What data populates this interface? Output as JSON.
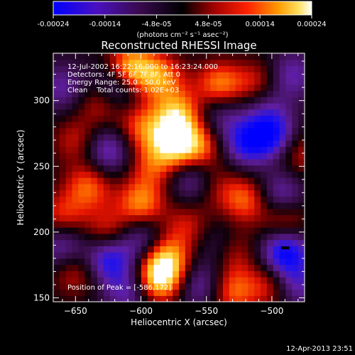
{
  "colorbar": {
    "tick_labels": [
      "-0.00024",
      "-0.00014",
      "-4.8e-05",
      "4.8e-05",
      "0.00014",
      "0.00024"
    ],
    "units": "(photons cm⁻² s⁻¹ asec⁻²)"
  },
  "title": "Reconstructed RHESSI Image",
  "annotations": {
    "time_range": "12-Jul-2002 16:22:16.000 to 16:23:24.000",
    "detectors": "Detectors: 4F 5F 6F 7F 8F, Att 0",
    "energy_range": "Energy Range: 25.0 - 50.0 keV",
    "clean": "Clean    Total counts: 1.02E+03",
    "peak": "Position of Peak = [-586,172]"
  },
  "footer": {
    "timestamp": "12-Apr-2013 23:51"
  },
  "chart_data": {
    "type": "heatmap",
    "title": "Reconstructed RHESSI Image",
    "xlabel": "Heliocentric X (arcsec)",
    "ylabel": "Heliocentric Y (arcsec)",
    "xlim": [
      -667,
      -475
    ],
    "ylim": [
      147,
      336
    ],
    "xticks": [
      -650,
      -600,
      -550,
      -500
    ],
    "yticks": [
      150,
      200,
      250,
      300
    ],
    "peak": [
      -586,
      172
    ],
    "colorbar_range": [
      -0.00024,
      0.00024
    ],
    "colormap": [
      "#0000ff",
      "#5a1aa0",
      "#2a0a38",
      "#000000",
      "#8a0000",
      "#ff1a00",
      "#ff8c00",
      "#ffd23c",
      "#ffffff"
    ],
    "blobs": [
      {
        "x": -608,
        "y": 325,
        "v": 0.9
      },
      {
        "x": -585,
        "y": 318,
        "v": 0.65
      },
      {
        "x": -540,
        "y": 312,
        "v": 0.7
      },
      {
        "x": -630,
        "y": 300,
        "v": 0.55
      },
      {
        "x": -575,
        "y": 268,
        "v": 0.9
      },
      {
        "x": -572,
        "y": 290,
        "v": 0.75
      },
      {
        "x": -555,
        "y": 265,
        "v": 0.6
      },
      {
        "x": -600,
        "y": 280,
        "v": 0.55
      },
      {
        "x": -592,
        "y": 250,
        "v": 0.45
      },
      {
        "x": -650,
        "y": 270,
        "v": 0.4
      },
      {
        "x": -640,
        "y": 235,
        "v": 0.6
      },
      {
        "x": -600,
        "y": 222,
        "v": 0.7
      },
      {
        "x": -520,
        "y": 225,
        "v": 0.6
      },
      {
        "x": -545,
        "y": 235,
        "v": 0.35
      },
      {
        "x": -660,
        "y": 212,
        "v": 0.5
      },
      {
        "x": -625,
        "y": 200,
        "v": 0.5
      },
      {
        "x": -580,
        "y": 180,
        "v": 0.7
      },
      {
        "x": -586,
        "y": 165,
        "v": 0.95
      },
      {
        "x": -565,
        "y": 205,
        "v": 0.4
      },
      {
        "x": -530,
        "y": 185,
        "v": 0.45
      },
      {
        "x": -650,
        "y": 170,
        "v": 0.45
      },
      {
        "x": -510,
        "y": 312,
        "v": 0.55
      },
      {
        "x": -490,
        "y": 210,
        "v": 0.55
      },
      {
        "x": -478,
        "y": 260,
        "v": 0.4
      },
      {
        "x": -530,
        "y": 155,
        "v": 0.6
      },
      {
        "x": -500,
        "y": 160,
        "v": 0.5
      },
      {
        "x": -620,
        "y": 310,
        "v": -0.7
      },
      {
        "x": -625,
        "y": 262,
        "v": -0.6
      },
      {
        "x": -660,
        "y": 310,
        "v": -0.45
      },
      {
        "x": -625,
        "y": 180,
        "v": -0.8
      },
      {
        "x": -660,
        "y": 190,
        "v": -0.55
      },
      {
        "x": -610,
        "y": 155,
        "v": -0.5
      },
      {
        "x": -600,
        "y": 195,
        "v": -0.5
      },
      {
        "x": -560,
        "y": 240,
        "v": -0.55
      },
      {
        "x": -540,
        "y": 190,
        "v": -0.35
      },
      {
        "x": -520,
        "y": 268,
        "v": -0.7
      },
      {
        "x": -500,
        "y": 275,
        "v": -0.8
      },
      {
        "x": -493,
        "y": 228,
        "v": -0.6
      },
      {
        "x": -490,
        "y": 185,
        "v": -0.95
      },
      {
        "x": -505,
        "y": 300,
        "v": -0.4
      },
      {
        "x": -540,
        "y": 290,
        "v": -0.4
      },
      {
        "x": -485,
        "y": 320,
        "v": -0.5
      },
      {
        "x": -555,
        "y": 160,
        "v": -0.5
      },
      {
        "x": -482,
        "y": 160,
        "v": -0.55
      }
    ]
  }
}
